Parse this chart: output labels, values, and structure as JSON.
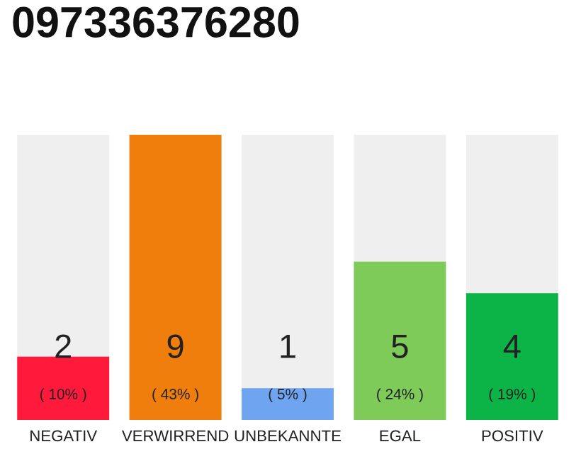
{
  "chart_data": {
    "type": "bar",
    "title": "097336376280",
    "categories": [
      "NEGATIV",
      "VERWIRREND",
      "UNBEKANNTE",
      "EGAL",
      "POSITIV"
    ],
    "values": [
      2,
      9,
      1,
      5,
      4
    ],
    "colors": [
      "#ff1a3c",
      "#f07e0c",
      "#6fa4f0",
      "#7ecb5a",
      "#0cb447"
    ],
    "value_labels": [
      "2\n( 10% )",
      "9\n( 43% )",
      "1\n( 5% )",
      "5\n( 24% )",
      "4\n( 19% )"
    ],
    "grid": false,
    "legend": false
  }
}
